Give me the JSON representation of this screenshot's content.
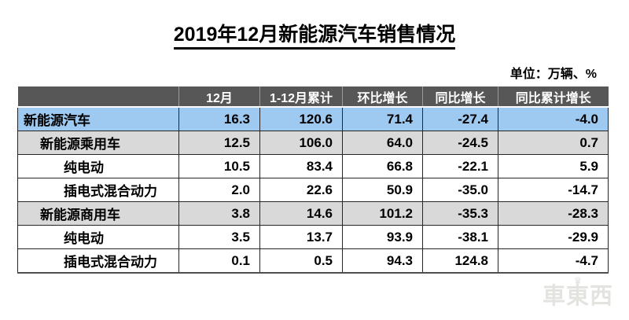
{
  "chart_data": {
    "type": "table",
    "title": "2019年12月新能源汽车销售情况",
    "unit_note": "单位：万辆、%",
    "columns": [
      "12月",
      "1-12月累计",
      "环比增长",
      "同比增长",
      "同比累计增长"
    ],
    "rows": [
      {
        "label": "新能源汽车",
        "indent_level": 0,
        "row_style": "highlight",
        "values": [
          16.3,
          120.6,
          71.4,
          -27.4,
          -4.0
        ]
      },
      {
        "label": "新能源乘用车",
        "indent_level": 1,
        "row_style": "subtotal",
        "values": [
          12.5,
          106.0,
          64.0,
          -24.5,
          0.7
        ]
      },
      {
        "label": "纯电动",
        "indent_level": 2,
        "row_style": "detail",
        "values": [
          10.5,
          83.4,
          66.8,
          -22.1,
          5.9
        ]
      },
      {
        "label": "插电式混合动力",
        "indent_level": 2,
        "row_style": "detail",
        "values": [
          2.0,
          22.6,
          50.9,
          -35.0,
          -14.7
        ]
      },
      {
        "label": "新能源商用车",
        "indent_level": 1,
        "row_style": "subtotal",
        "values": [
          3.8,
          14.6,
          101.2,
          -35.3,
          -28.3
        ]
      },
      {
        "label": "纯电动",
        "indent_level": 2,
        "row_style": "detail",
        "values": [
          3.5,
          13.7,
          93.9,
          -38.1,
          -29.9
        ]
      },
      {
        "label": "插电式混合动力",
        "indent_level": 2,
        "row_style": "detail",
        "values": [
          0.1,
          0.5,
          94.3,
          124.8,
          -4.7
        ]
      }
    ]
  },
  "watermark": {
    "crown": "♛",
    "text": "車東西"
  },
  "colors": {
    "header_bg": "#575757",
    "header_text": "#ffffff",
    "row_highlight_bg": "#9ec9f0",
    "row_subtotal_bg": "#d9d9d9",
    "row_detail_bg": "#ffffff",
    "grid_border": "#262626",
    "watermark_gray": "#e3e3df"
  }
}
